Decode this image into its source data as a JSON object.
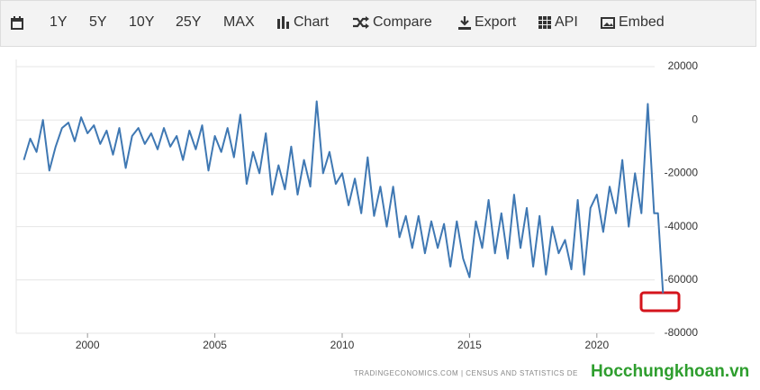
{
  "toolbar": {
    "buttons": [
      "1Y",
      "5Y",
      "10Y",
      "25Y",
      "MAX",
      "Chart",
      "Compare",
      "Export",
      "API",
      "Embed"
    ]
  },
  "chart_data": {
    "type": "line",
    "color": "#3f78b3",
    "grid": true,
    "x": [
      1997.5,
      1997.75,
      1998,
      1998.25,
      1998.5,
      1998.75,
      1999,
      1999.25,
      1999.5,
      1999.75,
      2000,
      2000.25,
      2000.5,
      2000.75,
      2001,
      2001.25,
      2001.5,
      2001.75,
      2002,
      2002.25,
      2002.5,
      2002.75,
      2003,
      2003.25,
      2003.5,
      2003.75,
      2004,
      2004.25,
      2004.5,
      2004.75,
      2005,
      2005.25,
      2005.5,
      2005.75,
      2006,
      2006.25,
      2006.5,
      2006.75,
      2007,
      2007.25,
      2007.5,
      2007.75,
      2008,
      2008.25,
      2008.5,
      2008.75,
      2009,
      2009.25,
      2009.5,
      2009.75,
      2010,
      2010.25,
      2010.5,
      2010.75,
      2011,
      2011.25,
      2011.5,
      2011.75,
      2012,
      2012.25,
      2012.5,
      2012.75,
      2013,
      2013.25,
      2013.5,
      2013.75,
      2014,
      2014.25,
      2014.5,
      2014.75,
      2015,
      2015.25,
      2015.5,
      2015.75,
      2016,
      2016.25,
      2016.5,
      2016.75,
      2017,
      2017.25,
      2017.5,
      2017.75,
      2018,
      2018.25,
      2018.5,
      2018.75,
      2019,
      2019.25,
      2019.5,
      2019.75,
      2020,
      2020.25,
      2020.5,
      2020.75,
      2021,
      2021.25,
      2021.5,
      2021.75,
      2022,
      2022.25,
      2022.4,
      2022.6
    ],
    "values": [
      -15000,
      -7000,
      -12000,
      0,
      -19000,
      -10000,
      -3000,
      -1000,
      -8000,
      1000,
      -5000,
      -2000,
      -9000,
      -4000,
      -13000,
      -3000,
      -18000,
      -6000,
      -3000,
      -9000,
      -5000,
      -11000,
      -3000,
      -10000,
      -6000,
      -15000,
      -4000,
      -11000,
      -2000,
      -19000,
      -6000,
      -12000,
      -3000,
      -14000,
      2000,
      -24000,
      -12000,
      -20000,
      -5000,
      -28000,
      -17000,
      -26000,
      -10000,
      -28000,
      -15000,
      -25000,
      7000,
      -20000,
      -12000,
      -24000,
      -20000,
      -32000,
      -22000,
      -35000,
      -14000,
      -36000,
      -25000,
      -40000,
      -25000,
      -44000,
      -36000,
      -48000,
      -36000,
      -50000,
      -38000,
      -48000,
      -39000,
      -55000,
      -38000,
      -52000,
      -59000,
      -38000,
      -48000,
      -30000,
      -50000,
      -35000,
      -52000,
      -28000,
      -48000,
      -33000,
      -55000,
      -36000,
      -58000,
      -40000,
      -50000,
      -45000,
      -56000,
      -30000,
      -58000,
      -33000,
      -28000,
      -42000,
      -25000,
      -35000,
      -15000,
      -40000,
      -20000,
      -35000,
      6000,
      -35000,
      -35000,
      -65000
    ],
    "xlim": [
      1997.2,
      2022.8
    ],
    "xticks": [
      2000,
      2005,
      2010,
      2015,
      2020
    ],
    "ylim": [
      -80000,
      20000
    ],
    "yticks": [
      20000,
      0,
      -20000,
      -40000,
      -60000,
      -80000
    ]
  },
  "source": "TRADINGECONOMICS.COM  |  CENSUS AND STATISTICS DE",
  "watermark": "Hocchungkhoan.vn"
}
